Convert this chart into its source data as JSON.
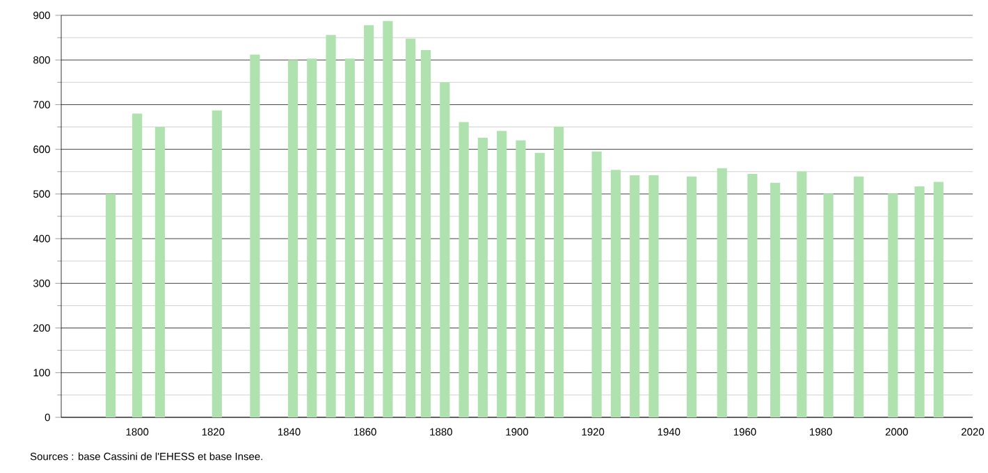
{
  "chart_data": {
    "type": "bar",
    "x": [
      1793,
      1800,
      1806,
      1821,
      1831,
      1841,
      1846,
      1851,
      1856,
      1861,
      1866,
      1872,
      1876,
      1881,
      1886,
      1891,
      1896,
      1901,
      1906,
      1911,
      1921,
      1926,
      1931,
      1936,
      1946,
      1954,
      1962,
      1968,
      1975,
      1982,
      1990,
      1999,
      2006,
      2011
    ],
    "values": [
      500,
      680,
      650,
      687,
      812,
      800,
      803,
      856,
      803,
      878,
      887,
      848,
      822,
      750,
      661,
      626,
      641,
      620,
      592,
      651,
      595,
      554,
      542,
      542,
      539,
      558,
      545,
      525,
      550,
      501,
      539,
      501,
      517,
      527
    ],
    "color": "#b0e2b0",
    "xlim": [
      1780,
      2020
    ],
    "xticks": [
      1800,
      1820,
      1840,
      1860,
      1880,
      1900,
      1920,
      1940,
      1960,
      1980,
      2000,
      2020
    ],
    "ylim": [
      0,
      900
    ],
    "yticks": [
      0,
      100,
      200,
      300,
      400,
      500,
      600,
      700,
      800,
      900
    ],
    "grid": "y",
    "annotations": [
      "Sources : base Cassini de l'EHESS et base Insee."
    ]
  }
}
